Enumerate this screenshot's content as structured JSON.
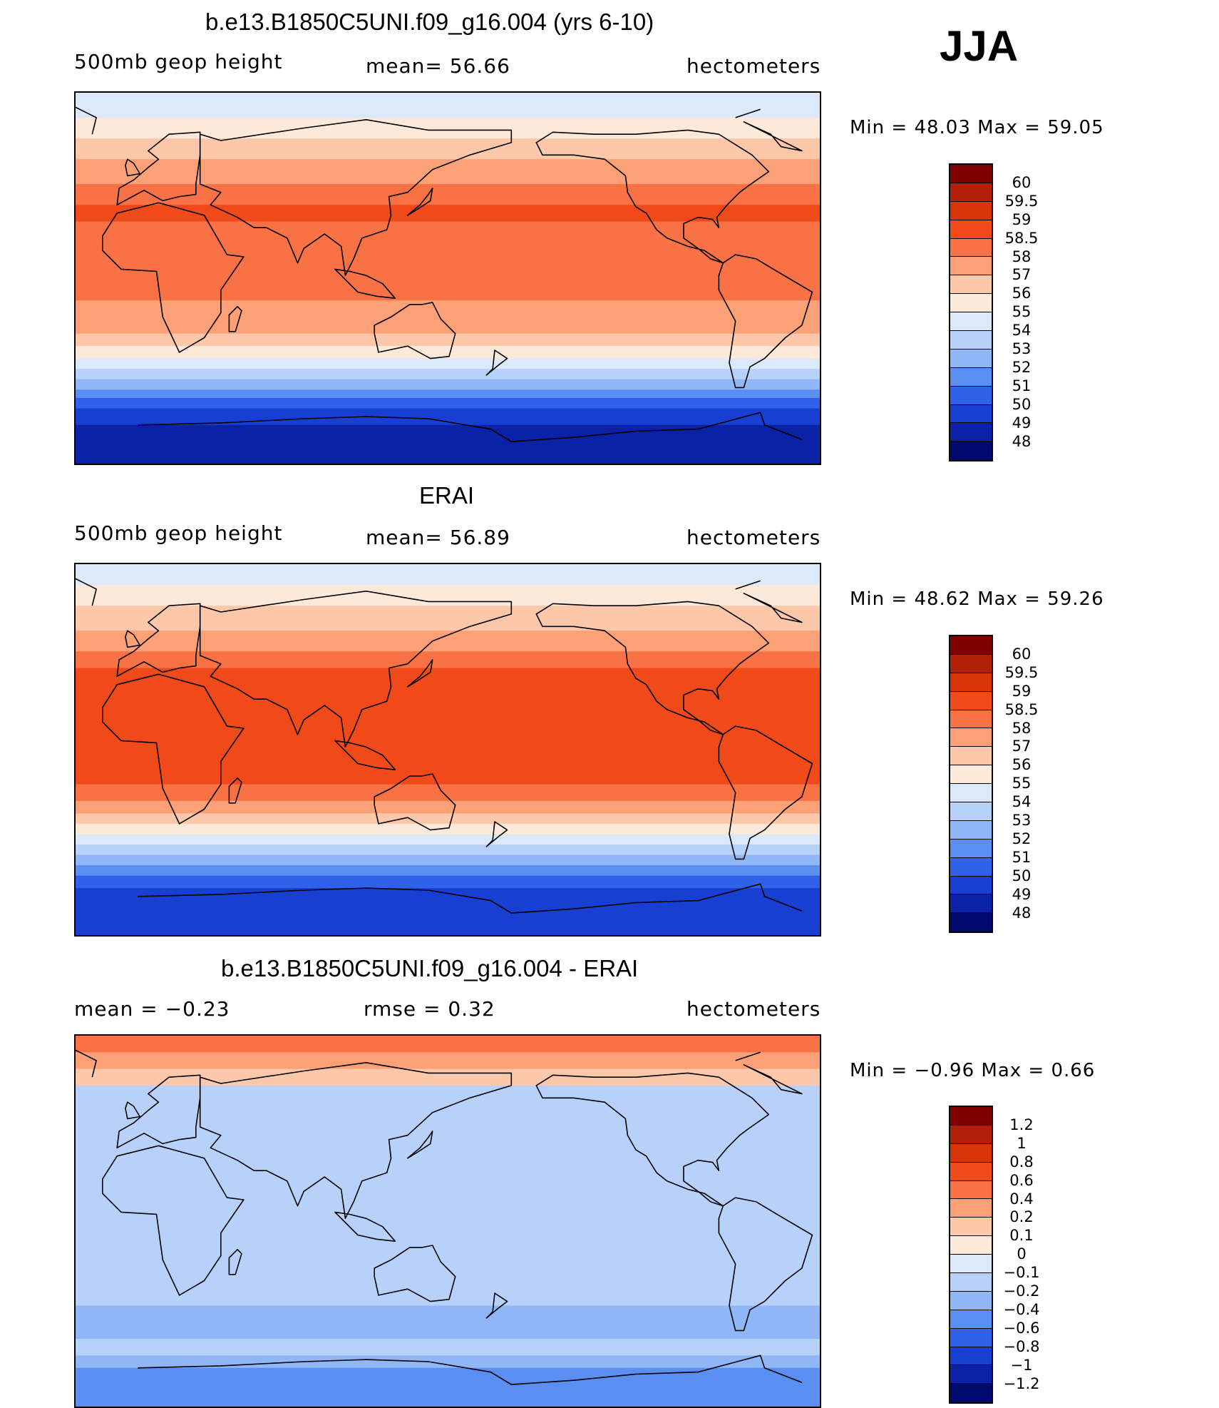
{
  "season": "JJA",
  "panels": [
    {
      "id": "model",
      "title": "b.e13.B1850C5UNI.f09_g16.004 (yrs 6-10)",
      "left_label": "500mb  geop  height",
      "center_label": "mean=   56.66",
      "right_label": "hectometers",
      "minmax": "Min  =    48.03  Max  =    59.05",
      "colorbar": {
        "labels": [
          "60",
          "59.5",
          "59",
          "58.5",
          "58",
          "57",
          "56",
          "55",
          "54",
          "53",
          "52",
          "51",
          "50",
          "49",
          "48"
        ],
        "colors": [
          "#800000",
          "#b3200a",
          "#d9330a",
          "#f04a1a",
          "#f97245",
          "#fca078",
          "#fdc8aa",
          "#fde9d9",
          "#dbe9fb",
          "#b8d1fa",
          "#8fb6f7",
          "#5a8ef0",
          "#2f62e8",
          "#173fd1",
          "#0b22a6",
          "#000a6e"
        ]
      },
      "bands": [
        {
          "lat": 90,
          "color": "#dbe9fb"
        },
        {
          "lat": 78,
          "color": "#fde9d9"
        },
        {
          "lat": 68,
          "color": "#fdc8aa"
        },
        {
          "lat": 58,
          "color": "#fca078"
        },
        {
          "lat": 46,
          "color": "#f97245"
        },
        {
          "lat": 36,
          "color": "#f04a1a"
        },
        {
          "lat": 28,
          "color": "#f97245"
        },
        {
          "lat": -10,
          "color": "#fca078"
        },
        {
          "lat": -26,
          "color": "#fdc8aa"
        },
        {
          "lat": -32,
          "color": "#fde9d9"
        },
        {
          "lat": -38,
          "color": "#dbe9fb"
        },
        {
          "lat": -43,
          "color": "#b8d1fa"
        },
        {
          "lat": -48,
          "color": "#8fb6f7"
        },
        {
          "lat": -53,
          "color": "#5a8ef0"
        },
        {
          "lat": -57,
          "color": "#2f62e8"
        },
        {
          "lat": -62,
          "color": "#173fd1"
        },
        {
          "lat": -70,
          "color": "#0b22a6"
        }
      ]
    },
    {
      "id": "obs",
      "title": "ERAI",
      "left_label": "500mb  geop  height",
      "center_label": "mean=   56.89",
      "right_label": "hectometers",
      "minmax": "Min  =    48.62  Max  =    59.26",
      "colorbar": {
        "labels": [
          "60",
          "59.5",
          "59",
          "58.5",
          "58",
          "57",
          "56",
          "55",
          "54",
          "53",
          "52",
          "51",
          "50",
          "49",
          "48"
        ],
        "colors": [
          "#800000",
          "#b3200a",
          "#d9330a",
          "#f04a1a",
          "#f97245",
          "#fca078",
          "#fdc8aa",
          "#fde9d9",
          "#dbe9fb",
          "#b8d1fa",
          "#8fb6f7",
          "#5a8ef0",
          "#2f62e8",
          "#173fd1",
          "#0b22a6",
          "#000a6e"
        ]
      },
      "bands": [
        {
          "lat": 90,
          "color": "#dbe9fb"
        },
        {
          "lat": 80,
          "color": "#fde9d9"
        },
        {
          "lat": 70,
          "color": "#fdc8aa"
        },
        {
          "lat": 58,
          "color": "#fca078"
        },
        {
          "lat": 48,
          "color": "#f97245"
        },
        {
          "lat": 40,
          "color": "#f04a1a"
        },
        {
          "lat": -16,
          "color": "#f97245"
        },
        {
          "lat": -24,
          "color": "#fca078"
        },
        {
          "lat": -30,
          "color": "#fdc8aa"
        },
        {
          "lat": -35,
          "color": "#fde9d9"
        },
        {
          "lat": -40,
          "color": "#dbe9fb"
        },
        {
          "lat": -45,
          "color": "#b8d1fa"
        },
        {
          "lat": -50,
          "color": "#8fb6f7"
        },
        {
          "lat": -55,
          "color": "#5a8ef0"
        },
        {
          "lat": -60,
          "color": "#2f62e8"
        },
        {
          "lat": -66,
          "color": "#173fd1"
        }
      ]
    },
    {
      "id": "diff",
      "title": "b.e13.B1850C5UNI.f09_g16.004 - ERAI",
      "left_label": "mean  =    −0.23",
      "center_label": "rmse  =     0.32",
      "right_label": "hectometers",
      "minmax": "Min  =    −0.96  Max  =      0.66",
      "colorbar": {
        "labels": [
          "1.2",
          "1",
          "0.8",
          "0.6",
          "0.4",
          "0.2",
          "0.1",
          "0",
          "−0.1",
          "−0.2",
          "−0.4",
          "−0.6",
          "−0.8",
          "−1",
          "−1.2"
        ],
        "colors": [
          "#800000",
          "#b3200a",
          "#d9330a",
          "#f04a1a",
          "#f97245",
          "#fca078",
          "#fdc8aa",
          "#fde9d9",
          "#dbe9fb",
          "#b8d1fa",
          "#8fb6f7",
          "#5a8ef0",
          "#2f62e8",
          "#173fd1",
          "#0b22a6",
          "#000a6e"
        ]
      },
      "bands": [
        {
          "lat": 90,
          "color": "#f97245"
        },
        {
          "lat": 82,
          "color": "#fca078"
        },
        {
          "lat": 74,
          "color": "#fdc8aa"
        },
        {
          "lat": 66,
          "color": "#b8d1fa"
        },
        {
          "lat": -20,
          "color": "#b8d1fa"
        },
        {
          "lat": -40,
          "color": "#8fb6f7"
        },
        {
          "lat": -56,
          "color": "#b8d1fa"
        },
        {
          "lat": -64,
          "color": "#8fb6f7"
        },
        {
          "lat": -70,
          "color": "#5a8ef0"
        }
      ]
    }
  ]
}
